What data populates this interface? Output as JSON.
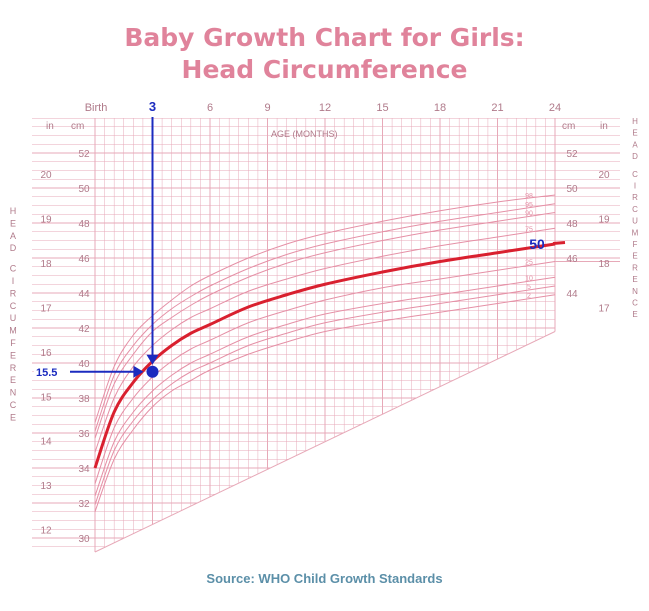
{
  "title_line1": "Baby Growth Chart for Girls:",
  "title_line2": "Head Circumference",
  "source": "Source: WHO Child Growth Standards",
  "colors": {
    "title": "#e0839b",
    "grid": "#e7a9b8",
    "percentile": "#e590a6",
    "median": "#d9202f",
    "annotation": "#1b2bbf",
    "source": "#5b8fa8"
  },
  "chart_data": {
    "type": "line",
    "title": "Baby Growth Chart for Girls: Head Circumference",
    "xlabel": "AGE (MONTHS)",
    "ylabel": "HEAD CIRCUMFERENCE",
    "x_unit_top_left": "Birth",
    "xlim": [
      0,
      24
    ],
    "x_ticks": [
      {
        "v": 0,
        "label": "Birth"
      },
      {
        "v": 3,
        "label": "3"
      },
      {
        "v": 6,
        "label": "6"
      },
      {
        "v": 9,
        "label": "9"
      },
      {
        "v": 12,
        "label": "12"
      },
      {
        "v": 15,
        "label": "15"
      },
      {
        "v": 18,
        "label": "18"
      },
      {
        "v": 21,
        "label": "21"
      },
      {
        "v": 24,
        "label": "24"
      }
    ],
    "ylim_cm": [
      29.5,
      54
    ],
    "cm_unit_label": "cm",
    "in_unit_label": "in",
    "cm_ticks": [
      "30",
      "32",
      "34",
      "36",
      "38",
      "40",
      "42",
      "44",
      "46",
      "48",
      "50",
      "52"
    ],
    "right_cm_ticks": [
      "44",
      "46",
      "48",
      "50",
      "52"
    ],
    "in_ticks": [
      "12",
      "13",
      "14",
      "15",
      "16",
      "17",
      "18",
      "19",
      "20"
    ],
    "right_in_ticks": [
      "17",
      "18",
      "19",
      "20"
    ],
    "x": [
      0,
      1,
      2,
      3,
      4,
      5,
      6,
      8,
      10,
      12,
      15,
      18,
      21,
      24
    ],
    "series": [
      {
        "name": "98",
        "values": [
          36.6,
          39.8,
          41.6,
          42.7,
          43.6,
          44.4,
          45.0,
          46.0,
          46.8,
          47.4,
          48.1,
          48.7,
          49.2,
          49.6
        ]
      },
      {
        "name": "95",
        "values": [
          36.1,
          39.3,
          41.0,
          42.2,
          43.1,
          43.8,
          44.4,
          45.4,
          46.2,
          46.8,
          47.5,
          48.1,
          48.6,
          49.1
        ]
      },
      {
        "name": "90",
        "values": [
          35.7,
          38.8,
          40.5,
          41.8,
          42.6,
          43.3,
          43.9,
          44.9,
          45.7,
          46.3,
          47.0,
          47.6,
          48.1,
          48.6
        ]
      },
      {
        "name": "75",
        "values": [
          34.9,
          38.0,
          39.8,
          41.0,
          41.9,
          42.6,
          43.1,
          44.1,
          44.8,
          45.4,
          46.1,
          46.7,
          47.2,
          47.7
        ]
      },
      {
        "name": "50",
        "values": [
          34.0,
          37.2,
          38.9,
          40.1,
          41.0,
          41.7,
          42.2,
          43.2,
          43.9,
          44.5,
          45.2,
          45.8,
          46.3,
          46.8
        ]
      },
      {
        "name": "25",
        "values": [
          33.1,
          36.3,
          38.0,
          39.2,
          40.1,
          40.8,
          41.3,
          42.3,
          43.0,
          43.6,
          44.3,
          44.8,
          45.3,
          45.8
        ]
      },
      {
        "name": "10",
        "values": [
          32.4,
          35.5,
          37.2,
          38.4,
          39.3,
          40.0,
          40.5,
          41.5,
          42.2,
          42.8,
          43.4,
          43.9,
          44.4,
          44.9
        ]
      },
      {
        "name": "5",
        "values": [
          31.9,
          35.0,
          36.7,
          37.9,
          38.8,
          39.5,
          40.0,
          41.0,
          41.7,
          42.3,
          42.9,
          43.4,
          43.9,
          44.4
        ]
      },
      {
        "name": "2",
        "values": [
          31.5,
          34.5,
          36.2,
          37.5,
          38.4,
          39.0,
          39.6,
          40.5,
          41.2,
          41.8,
          42.4,
          42.9,
          43.4,
          43.9
        ]
      }
    ],
    "highlight_series": "50",
    "highlight_label": "50",
    "annotation": {
      "x": 3,
      "x_label": "3",
      "y_in": 15.5,
      "y_label": "15.5",
      "y_cm": 39.5
    }
  }
}
